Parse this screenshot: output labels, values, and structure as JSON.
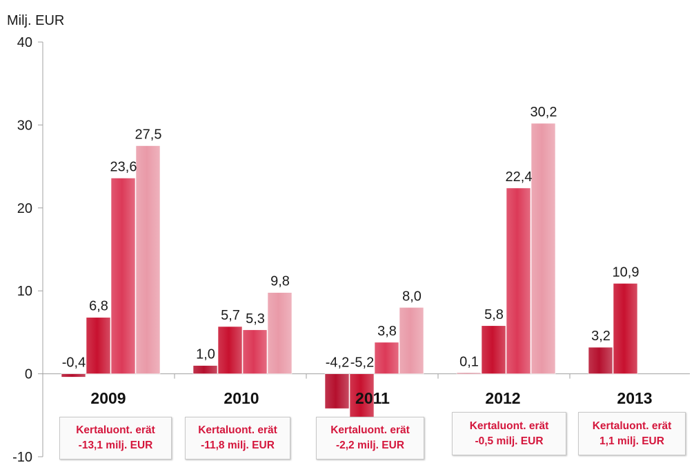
{
  "chart_data": {
    "type": "bar",
    "title": "",
    "ylabel": "Milj. EUR",
    "xlabel": "",
    "ylim": [
      -10,
      40
    ],
    "yticks": [
      "40",
      "30",
      "20",
      "10",
      "0",
      "-10"
    ],
    "ytick_values": [
      40,
      30,
      20,
      10,
      0,
      -10
    ],
    "grid": false,
    "categories": [
      "2009",
      "2010",
      "2011",
      "2012",
      "2013"
    ],
    "bars": [
      [
        {
          "value": -0.4,
          "label": "-0,4",
          "color": "#b5102e"
        },
        {
          "value": 6.8,
          "label": "6,8",
          "color": "#c8112f"
        },
        {
          "value": 23.6,
          "label": "23,6",
          "color": "#dc3a58"
        },
        {
          "value": 27.5,
          "label": "27,5",
          "color": "#e99aa8"
        }
      ],
      [
        {
          "value": 1.0,
          "label": "1,0",
          "color": "#b5102e"
        },
        {
          "value": 5.7,
          "label": "5,7",
          "color": "#c8112f"
        },
        {
          "value": 5.3,
          "label": "5,3",
          "color": "#dc3a58"
        },
        {
          "value": 9.8,
          "label": "9,8",
          "color": "#e99aa8"
        }
      ],
      [
        {
          "value": -4.2,
          "label": "-4,2",
          "color": "#b5102e"
        },
        {
          "value": -5.2,
          "label": "-5,2",
          "color": "#c8112f"
        },
        {
          "value": 3.8,
          "label": "3,8",
          "color": "#dc3a58"
        },
        {
          "value": 8.0,
          "label": "8,0",
          "color": "#e99aa8"
        }
      ],
      [
        {
          "value": 0.1,
          "label": "0,1",
          "color": "#b5102e"
        },
        {
          "value": 5.8,
          "label": "5,8",
          "color": "#c8112f"
        },
        {
          "value": 22.4,
          "label": "22,4",
          "color": "#dc3a58"
        },
        {
          "value": 30.2,
          "label": "30,2",
          "color": "#e99aa8"
        }
      ],
      [
        {
          "value": 3.2,
          "label": "3,2",
          "color": "#b5102e"
        },
        {
          "value": 10.9,
          "label": "10,9",
          "color": "#c8112f"
        }
      ]
    ],
    "annotations": [
      {
        "line1": "Kertaluont. erät",
        "line2": "-13,1 milj. EUR"
      },
      {
        "line1": "Kertaluont. erät",
        "line2": "-11,8 milj. EUR"
      },
      {
        "line1": "Kertaluont. erät",
        "line2": "-2,2 milj. EUR"
      },
      {
        "line1": "Kertaluont. erät",
        "line2": "-0,5 milj. EUR"
      },
      {
        "line1": "Kertaluont. erät",
        "line2": "1,1 milj. EUR"
      }
    ],
    "colors": {
      "axis": "#a0a0a0",
      "annotation_text": "#d4163c"
    }
  }
}
